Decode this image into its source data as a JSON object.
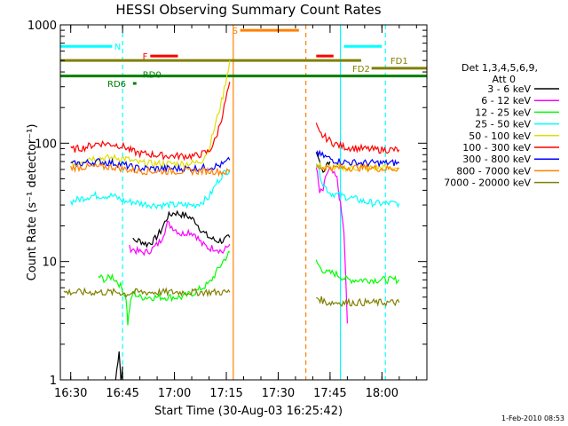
{
  "chart_data": {
    "type": "line",
    "title": "HESSI Observing Summary Count Rates",
    "xlabel": "Start Time (30-Aug-03 16:25:42)",
    "ylabel": "Count Rate (s⁻¹ detector⁻¹)",
    "y_scale": "log",
    "ylim": [
      1,
      1000
    ],
    "xlim_minutes": [
      -3,
      103
    ],
    "x_ticks": [
      {
        "m": 0,
        "label": "16:30"
      },
      {
        "m": 15,
        "label": "16:45"
      },
      {
        "m": 30,
        "label": "17:00"
      },
      {
        "m": 45,
        "label": "17:15"
      },
      {
        "m": 60,
        "label": "17:30"
      },
      {
        "m": 75,
        "label": "17:45"
      },
      {
        "m": 90,
        "label": "18:00"
      }
    ],
    "y_ticks": [
      {
        "v": 1,
        "label": "1"
      },
      {
        "v": 10,
        "label": "10"
      },
      {
        "v": 100,
        "label": "100"
      },
      {
        "v": 1000,
        "label": "1000"
      }
    ],
    "legend": {
      "placement": "right",
      "header": [
        "Det 1,3,4,5,6,9,",
        "Att 0"
      ]
    },
    "series": [
      {
        "name": "3 - 6 keV",
        "color": "#000000",
        "segments": [
          [
            [
              13,
              1.0
            ],
            [
              14,
              1.8
            ],
            [
              14.5,
              1.0
            ],
            [
              15,
              1.3
            ]
          ],
          [
            [
              18,
              15
            ],
            [
              20,
              15
            ],
            [
              22,
              14
            ],
            [
              24,
              15
            ],
            [
              26,
              18
            ],
            [
              28,
              24
            ],
            [
              30,
              26
            ],
            [
              32,
              25
            ],
            [
              34,
              24
            ],
            [
              36,
              22
            ],
            [
              38,
              18
            ],
            [
              40,
              16
            ],
            [
              42,
              15
            ],
            [
              44,
              15
            ],
            [
              46,
              16
            ]
          ],
          [
            [
              71,
              80
            ],
            [
              72,
              70
            ],
            [
              73,
              58
            ],
            [
              74,
              65
            ],
            [
              75,
              70
            ]
          ]
        ]
      },
      {
        "name": "6 - 12 keV",
        "color": "#ff00ff",
        "segments": [
          [
            [
              17,
              13
            ],
            [
              20,
              12
            ],
            [
              22,
              12
            ],
            [
              24,
              13
            ],
            [
              26,
              15
            ],
            [
              28,
              21
            ],
            [
              30,
              19
            ],
            [
              32,
              17
            ],
            [
              34,
              18
            ],
            [
              36,
              17
            ],
            [
              38,
              14
            ],
            [
              40,
              13
            ],
            [
              42,
              13
            ],
            [
              44,
              12
            ],
            [
              46,
              14
            ]
          ],
          [
            [
              71,
              65
            ],
            [
              72,
              38
            ],
            [
              73,
              40
            ],
            [
              74,
              55
            ],
            [
              75,
              60
            ],
            [
              77,
              50
            ],
            [
              78,
              30
            ],
            [
              79,
              18
            ],
            [
              80,
              3
            ]
          ]
        ]
      },
      {
        "name": "12 - 25 keV",
        "color": "#00ff00",
        "segments": [
          [
            [
              8,
              7.5
            ],
            [
              10,
              7
            ],
            [
              12,
              7.5
            ],
            [
              14,
              6.5
            ],
            [
              16,
              5
            ],
            [
              16.5,
              3
            ],
            [
              17,
              4
            ],
            [
              18,
              5.5
            ],
            [
              20,
              5
            ],
            [
              24,
              5
            ],
            [
              28,
              5
            ],
            [
              32,
              5
            ],
            [
              36,
              5.5
            ],
            [
              38,
              6
            ],
            [
              40,
              6.5
            ],
            [
              42,
              8
            ],
            [
              44,
              10
            ],
            [
              46,
              12
            ]
          ],
          [
            [
              71,
              10
            ],
            [
              72,
              9
            ],
            [
              74,
              8
            ],
            [
              76,
              8
            ],
            [
              78,
              7.5
            ],
            [
              80,
              7
            ],
            [
              84,
              7
            ],
            [
              88,
              7
            ],
            [
              92,
              7
            ],
            [
              95,
              7
            ]
          ]
        ]
      },
      {
        "name": "25 - 50 keV",
        "color": "#00ffff",
        "segments": [
          [
            [
              0,
              32
            ],
            [
              3,
              34
            ],
            [
              6,
              36
            ],
            [
              9,
              36
            ],
            [
              12,
              36
            ],
            [
              14,
              34
            ],
            [
              16,
              32
            ],
            [
              18,
              32
            ],
            [
              20,
              31
            ],
            [
              24,
              30
            ],
            [
              28,
              30
            ],
            [
              32,
              30
            ],
            [
              36,
              30
            ],
            [
              38,
              32
            ],
            [
              40,
              35
            ],
            [
              42,
              45
            ],
            [
              44,
              55
            ],
            [
              46,
              60
            ]
          ],
          [
            [
              71,
              70
            ],
            [
              73,
              45
            ],
            [
              75,
              38
            ],
            [
              78,
              36
            ],
            [
              80,
              35
            ],
            [
              82,
              34
            ],
            [
              85,
              32
            ],
            [
              88,
              31
            ],
            [
              92,
              31
            ],
            [
              95,
              31
            ]
          ]
        ]
      },
      {
        "name": "50 - 100 keV",
        "color": "#e0e000",
        "segments": [
          [
            [
              0,
              65
            ],
            [
              5,
              75
            ],
            [
              10,
              75
            ],
            [
              13,
              75
            ],
            [
              16,
              74
            ],
            [
              18,
              70
            ],
            [
              20,
              68
            ],
            [
              24,
              67
            ],
            [
              28,
              67
            ],
            [
              32,
              67
            ],
            [
              36,
              68
            ],
            [
              38,
              72
            ],
            [
              40,
              90
            ],
            [
              42,
              150
            ],
            [
              44,
              250
            ],
            [
              46,
              500
            ]
          ],
          [
            [
              71,
              65
            ],
            [
              74,
              62
            ],
            [
              78,
              62
            ],
            [
              82,
              62
            ],
            [
              86,
              62
            ],
            [
              90,
              62
            ],
            [
              95,
              62
            ]
          ]
        ]
      },
      {
        "name": "100 - 300 keV",
        "color": "#ff0000",
        "segments": [
          [
            [
              0,
              88
            ],
            [
              4,
              92
            ],
            [
              8,
              100
            ],
            [
              12,
              98
            ],
            [
              14,
              96
            ],
            [
              16,
              92
            ],
            [
              17,
              88
            ],
            [
              18,
              85
            ],
            [
              20,
              82
            ],
            [
              24,
              80
            ],
            [
              28,
              78
            ],
            [
              32,
              78
            ],
            [
              36,
              78
            ],
            [
              40,
              85
            ],
            [
              42,
              110
            ],
            [
              44,
              180
            ],
            [
              46,
              330
            ]
          ],
          [
            [
              71,
              140
            ],
            [
              72,
              120
            ],
            [
              74,
              110
            ],
            [
              76,
              100
            ],
            [
              78,
              95
            ],
            [
              80,
              92
            ],
            [
              84,
              90
            ],
            [
              88,
              88
            ],
            [
              92,
              88
            ],
            [
              95,
              88
            ]
          ]
        ]
      },
      {
        "name": "300 - 800 keV",
        "color": "#0000ff",
        "segments": [
          [
            [
              0,
              66
            ],
            [
              4,
              68
            ],
            [
              8,
              70
            ],
            [
              12,
              68
            ],
            [
              14,
              67
            ],
            [
              16,
              65
            ],
            [
              18,
              62
            ],
            [
              22,
              61
            ],
            [
              26,
              61
            ],
            [
              30,
              61
            ],
            [
              34,
              61
            ],
            [
              38,
              62
            ],
            [
              42,
              64
            ],
            [
              44,
              66
            ],
            [
              46,
              72
            ]
          ],
          [
            [
              71,
              85
            ],
            [
              72,
              80
            ],
            [
              74,
              76
            ],
            [
              76,
              72
            ],
            [
              78,
              70
            ],
            [
              80,
              69
            ],
            [
              84,
              68
            ],
            [
              88,
              68
            ],
            [
              92,
              68
            ],
            [
              95,
              68
            ]
          ]
        ]
      },
      {
        "name": "800 - 7000 keV",
        "color": "#ff8000",
        "segments": [
          [
            [
              0,
              62
            ],
            [
              4,
              63
            ],
            [
              8,
              63
            ],
            [
              12,
              63
            ],
            [
              14,
              62
            ],
            [
              16,
              60
            ],
            [
              18,
              59
            ],
            [
              22,
              58
            ],
            [
              26,
              58
            ],
            [
              30,
              58
            ],
            [
              34,
              58
            ],
            [
              38,
              58
            ],
            [
              42,
              58
            ],
            [
              44,
              57
            ],
            [
              46,
              57
            ]
          ],
          [
            [
              71,
              63
            ],
            [
              74,
              62
            ],
            [
              78,
              62
            ],
            [
              82,
              62
            ],
            [
              86,
              62
            ],
            [
              90,
              61
            ],
            [
              95,
              61
            ]
          ]
        ]
      },
      {
        "name": "7000 - 20000 keV",
        "color": "#808000",
        "segments": [
          [
            [
              -2,
              5.5
            ],
            [
              2,
              5.5
            ],
            [
              6,
              5.5
            ],
            [
              10,
              5.5
            ],
            [
              14,
              5.5
            ],
            [
              16,
              5.3
            ],
            [
              18,
              5.5
            ],
            [
              22,
              5.5
            ],
            [
              26,
              5.5
            ],
            [
              30,
              5.5
            ],
            [
              34,
              5.5
            ],
            [
              38,
              5.5
            ],
            [
              42,
              5.5
            ],
            [
              44,
              5.5
            ],
            [
              46,
              5.5
            ]
          ],
          [
            [
              71,
              5
            ],
            [
              74,
              4.5
            ],
            [
              78,
              4.5
            ],
            [
              82,
              4.5
            ],
            [
              86,
              4.5
            ],
            [
              90,
              4.5
            ],
            [
              95,
              4.5
            ]
          ]
        ]
      }
    ],
    "vlines": [
      {
        "m": 15,
        "color": "#00ffff",
        "style": "dashed"
      },
      {
        "m": 91,
        "color": "#00ffff",
        "style": "dashed"
      },
      {
        "m": 78,
        "color": "#00ffff",
        "style": "solid"
      },
      {
        "m": 47,
        "color": "#ff8000",
        "style": "solid"
      },
      {
        "m": 68,
        "color": "#ff8000",
        "style": "dashed"
      }
    ],
    "flag_bars": [
      {
        "label": "N",
        "color": "#00ffff",
        "x0": -3,
        "x1": 12,
        "y": 658
      },
      {
        "label": "",
        "color": "#00ffff",
        "x0": 79,
        "x1": 90,
        "y": 658
      },
      {
        "label": "F",
        "color": "#ff0000",
        "x0": 23,
        "x1": 31,
        "y": 545
      },
      {
        "label": "",
        "color": "#ff0000",
        "x0": 71,
        "x1": 76,
        "y": 545
      },
      {
        "label": "S",
        "color": "#ff8000",
        "x0": 49,
        "x1": 66,
        "y": 900
      },
      {
        "label": "FD1",
        "color": "#808000",
        "x0": -3,
        "x1": 84,
        "y": 500
      },
      {
        "label": "FD2",
        "color": "#808000",
        "x0": 87,
        "x1": 103,
        "y": 430
      },
      {
        "label": "RD0",
        "color": "#008000",
        "x0": -3,
        "x1": 103,
        "y": 370
      },
      {
        "label": "RD6",
        "color": "#008000",
        "x0": 18,
        "x1": 19,
        "y": 320
      }
    ],
    "footer_date": "1-Feb-2010 08:53"
  }
}
